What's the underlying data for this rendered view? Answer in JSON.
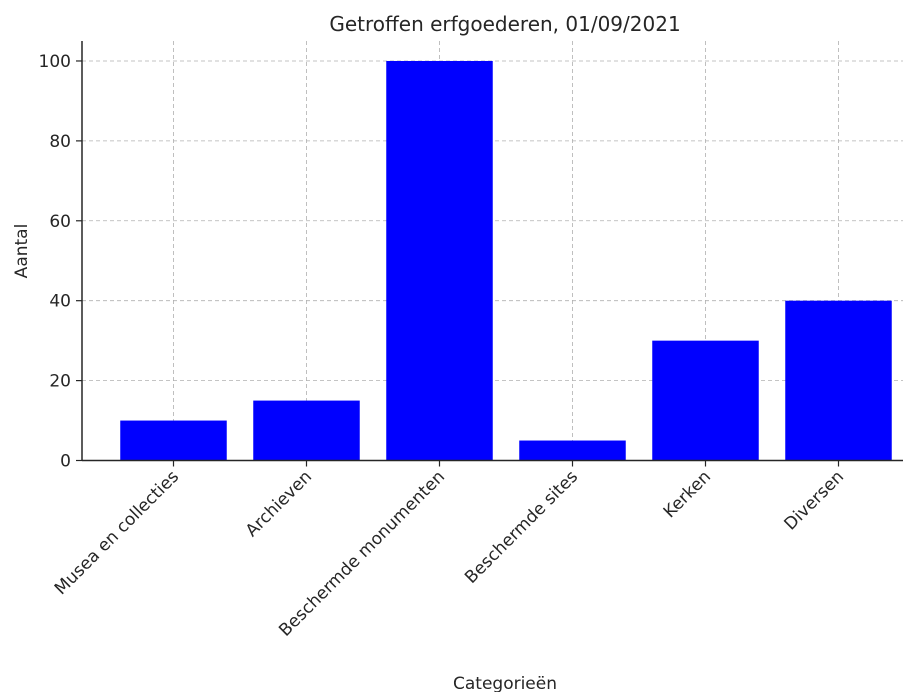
{
  "chart_data": {
    "type": "bar",
    "title": "Getroffen erfgoederen, 01/09/2021",
    "xlabel": "Categorieën",
    "ylabel": "Aantal",
    "categories": [
      "Musea en collecties",
      "Archieven",
      "Beschermde monumenten",
      "Beschermde sites",
      "Kerken",
      "Diversen"
    ],
    "values": [
      10,
      15,
      100,
      5,
      30,
      40
    ],
    "ylim": [
      0,
      105
    ],
    "yticks": [
      "0",
      "20",
      "40",
      "60",
      "80",
      "100"
    ],
    "grid": true,
    "bar_color": "#0000ff",
    "grid_color": "#b0b0b0"
  }
}
